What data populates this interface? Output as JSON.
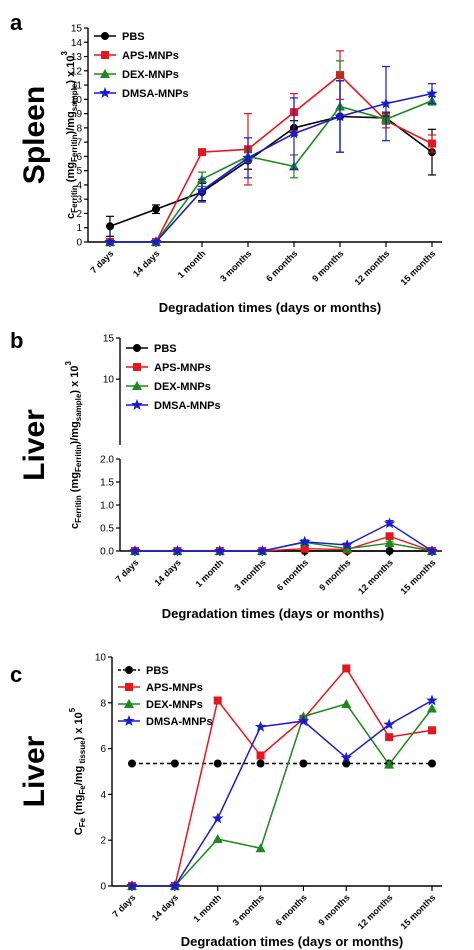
{
  "figure": {
    "categories": [
      "7 days",
      "14 days",
      "1 month",
      "3 months",
      "6 months",
      "9 months",
      "12 months",
      "15 months"
    ],
    "colors": {
      "PBS": "#000000",
      "APS-MNPs": "#e8161c",
      "DEX-MNPs": "#1a8a1a",
      "DMSA-MNPs": "#1919d6"
    }
  },
  "chart_data": [
    {
      "type": "line",
      "panel": "a",
      "organ": "Spleen",
      "xlabel": "Degradation times (days or months)",
      "ylabel_parts": [
        "c",
        "Ferritin",
        " (mg",
        "Ferritin",
        ")/mg",
        "sample",
        ") x 10",
        "3"
      ],
      "ylim": [
        0,
        15
      ],
      "yticks": [
        0,
        1,
        2,
        3,
        4,
        5,
        6,
        7,
        8,
        9,
        10,
        11,
        12,
        13,
        14,
        15
      ],
      "legend": [
        "PBS",
        "APS-MNPs",
        "DEX-MNPs",
        "DMSA-MNPs"
      ],
      "series": [
        {
          "name": "PBS",
          "marker": "circle",
          "values": [
            1.1,
            2.3,
            3.5,
            5.7,
            8.0,
            8.8,
            8.7,
            6.3
          ],
          "err": [
            0.7,
            0.3,
            0.6,
            0.6,
            0.5,
            2.5,
            0.4,
            1.6
          ]
        },
        {
          "name": "APS-MNPs",
          "marker": "square",
          "values": [
            0.0,
            0.0,
            6.3,
            6.5,
            9.1,
            11.7,
            8.5,
            6.9
          ],
          "err": [
            0.0,
            0.0,
            0.2,
            2.5,
            1.3,
            1.7,
            0.5,
            0.6
          ]
        },
        {
          "name": "DEX-MNPs",
          "marker": "triangle",
          "values": [
            0.0,
            0.0,
            4.4,
            6.0,
            5.3,
            9.5,
            8.6,
            9.9
          ],
          "err": [
            0.0,
            0.0,
            0.5,
            0.4,
            0.8,
            3.2,
            0.3,
            0.3
          ]
        },
        {
          "name": "DMSA-MNPs",
          "marker": "star",
          "values": [
            0.0,
            0.0,
            3.6,
            5.9,
            7.6,
            8.8,
            9.7,
            10.4
          ],
          "err": [
            0.0,
            0.0,
            0.8,
            1.4,
            2.5,
            2.5,
            2.6,
            0.7
          ]
        }
      ]
    },
    {
      "type": "line",
      "panel": "b",
      "organ": "Liver",
      "xlabel": "Degradation times (days or months)",
      "ylabel_parts": [
        "c",
        "Ferritin",
        " (mg",
        "Ferritin",
        ")/mg",
        "sample",
        ") x 10",
        "3"
      ],
      "broken_axis": {
        "lower": [
          0,
          2
        ],
        "upper": [
          2,
          15
        ]
      },
      "yticks_lower": [
        "0.0",
        "0.5",
        "1.0",
        "1.5",
        "2.0"
      ],
      "yticks_upper": [
        "10",
        "15"
      ],
      "legend": [
        "PBS",
        "APS-MNPs",
        "DEX-MNPs",
        "DMSA-MNPs"
      ],
      "series": [
        {
          "name": "PBS",
          "marker": "circle",
          "values": [
            0,
            0,
            0,
            0,
            0,
            0,
            0,
            0
          ],
          "err": [
            0,
            0,
            0,
            0,
            0,
            0,
            0,
            0
          ]
        },
        {
          "name": "APS-MNPs",
          "marker": "square",
          "values": [
            0,
            0,
            0,
            0,
            0.05,
            0.03,
            0.32,
            0.0
          ],
          "err": [
            0,
            0,
            0,
            0,
            0.02,
            0.02,
            0.04,
            0
          ]
        },
        {
          "name": "DEX-MNPs",
          "marker": "triangle",
          "values": [
            0,
            0,
            0,
            0,
            0.19,
            0.05,
            0.17,
            0.0
          ],
          "err": [
            0,
            0,
            0,
            0,
            0.03,
            0.02,
            0.03,
            0
          ]
        },
        {
          "name": "DMSA-MNPs",
          "marker": "star",
          "values": [
            0,
            0,
            0,
            0,
            0.2,
            0.13,
            0.6,
            0.0
          ],
          "err": [
            0,
            0,
            0,
            0,
            0.04,
            0.04,
            0.06,
            0
          ]
        }
      ]
    },
    {
      "type": "line",
      "panel": "c",
      "organ": "Liver",
      "xlabel": "Degradation times (days or months)",
      "ylabel_parts": [
        "C",
        "Fe",
        " (mg",
        "Fe",
        "/mg",
        " tissue",
        ") x 10",
        "5"
      ],
      "ylim": [
        0,
        10
      ],
      "yticks": [
        0,
        2,
        4,
        6,
        8,
        10
      ],
      "legend": [
        "PBS",
        "APS-MNPs",
        "DEX-MNPs",
        "DMSA-MNPs"
      ],
      "series": [
        {
          "name": "PBS",
          "marker": "circle",
          "dashed": true,
          "values": [
            5.35,
            5.35,
            5.35,
            5.35,
            5.35,
            5.35,
            5.35,
            5.35
          ]
        },
        {
          "name": "APS-MNPs",
          "marker": "square",
          "values": [
            0.0,
            0.0,
            8.1,
            5.7,
            7.3,
            9.5,
            6.5,
            6.8
          ]
        },
        {
          "name": "DEX-MNPs",
          "marker": "triangle",
          "values": [
            0.0,
            0.0,
            2.05,
            1.65,
            7.4,
            7.95,
            5.3,
            7.75
          ]
        },
        {
          "name": "DMSA-MNPs",
          "marker": "star",
          "values": [
            0.0,
            0.0,
            2.95,
            6.95,
            7.2,
            5.6,
            7.05,
            8.1
          ]
        }
      ]
    }
  ]
}
